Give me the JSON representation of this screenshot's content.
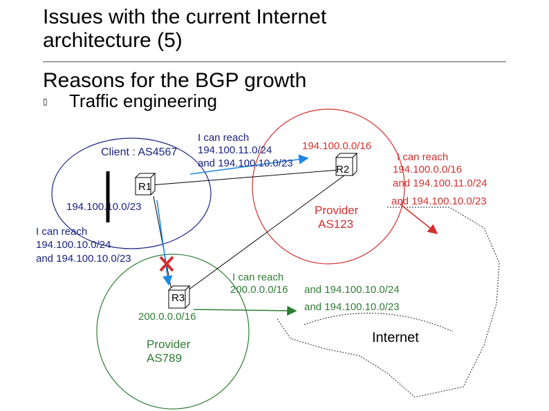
{
  "slide": {
    "title": "Issues with the current Internet architecture (5)",
    "subtitle": "Reasons for the BGP growth",
    "bullet": "Traffic engineering",
    "bullet_glyph": "▯"
  },
  "diagram": {
    "client_label": "Client : AS4567",
    "client_announce": [
      "I can reach",
      "194.100.11.0/24",
      "and 194.100.10.0/23"
    ],
    "client_prefix": "194.100.10.0/23",
    "client_announce_left": [
      "I can reach",
      "194.100.10.0/24",
      "and 194.100.10.0/23"
    ],
    "r1": "R1",
    "r2": "R2",
    "r3": "R3",
    "provider_123": [
      "Provider",
      "AS123"
    ],
    "provider_123_prefix": "194.100.0.0/16",
    "provider_123_announce": [
      "I can reach",
      "194.100.0.0/16",
      "and 194.100.11.0/24",
      "and 194.100.10.0/23"
    ],
    "provider_789": [
      "Provider",
      "AS789"
    ],
    "provider_789_prefix": "200.0.0.0/16",
    "provider_789_announce": [
      "I can reach",
      "200.0.0.0/16",
      "and 194.100.10.0/24",
      "and 194.100.10.0/23"
    ],
    "internet": "Internet"
  },
  "colors": {
    "client": "#1a237e",
    "as123": "#d32f2f",
    "as789": "#2e7d32",
    "link_block": "#d32f2f"
  }
}
